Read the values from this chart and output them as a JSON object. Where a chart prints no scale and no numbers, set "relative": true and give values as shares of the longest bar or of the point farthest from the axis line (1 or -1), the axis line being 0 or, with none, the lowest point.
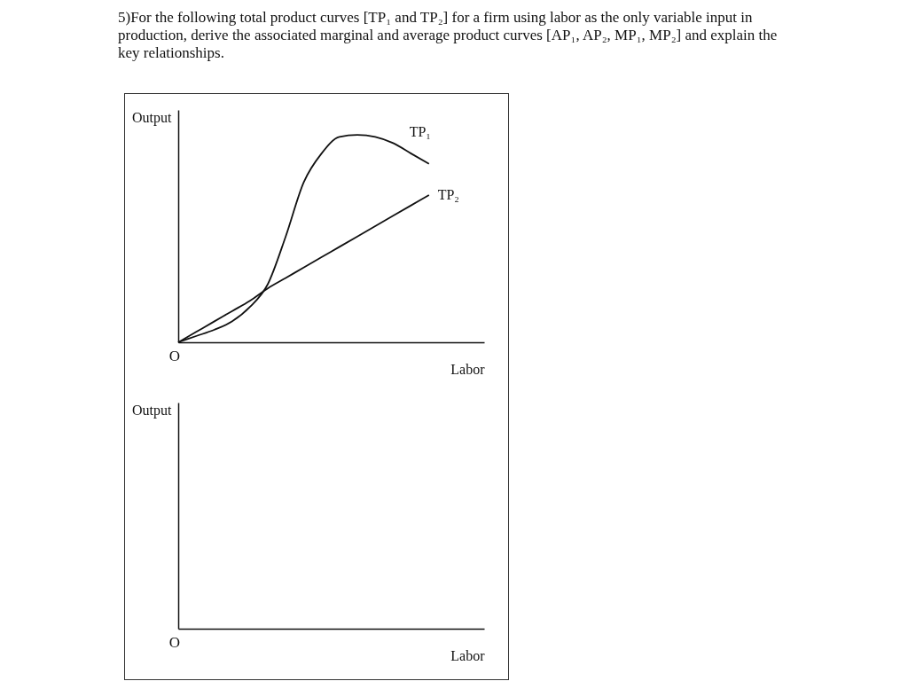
{
  "chart_data": [
    {
      "type": "line",
      "title": "5)For the following total product curves [TP₁ and TP₂] for a firm using labor as the only variable input in production, derive the associated marginal and average product curves [AP₁, AP₂, MP₁, MP₂] and explain the key relationships.",
      "xlabel": "Labor",
      "ylabel": "Output",
      "annotations": [
        "O"
      ],
      "relative": true,
      "grid": false,
      "marker": "none",
      "line_style": "solid",
      "categories": [
        null,
        null,
        null,
        null,
        null,
        null,
        null,
        null,
        null,
        null,
        null,
        null,
        null,
        null,
        null
      ],
      "series": [
        {
          "name": "TP₁",
          "color": "#111111",
          "values": [
            0,
            0.03,
            0.06,
            0.1,
            0.17,
            0.28,
            0.51,
            0.77,
            0.91,
            0.99,
            1,
            0.99,
            0.96,
            0.91,
            0.86
          ]
        },
        {
          "name": "TP₂",
          "color": "#111111",
          "values": [
            0,
            0.05,
            0.1,
            0.15,
            0.2,
            0.26,
            0.31,
            0.36,
            0.41,
            0.46,
            0.51,
            0.56,
            0.61,
            0.66,
            0.71
          ]
        }
      ]
    },
    {
      "type": "other",
      "xlabel": "Labor",
      "ylabel": "Output",
      "annotations": [
        "O"
      ]
    }
  ]
}
